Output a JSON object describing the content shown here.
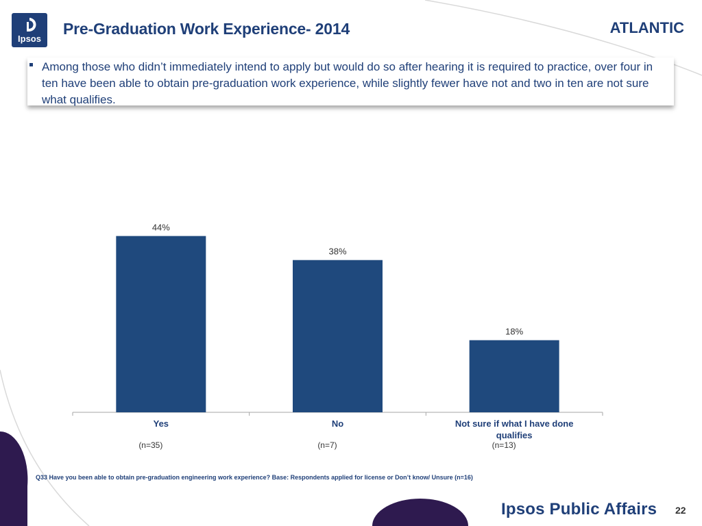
{
  "header": {
    "logo_text": "Ipsos",
    "title": "Pre-Graduation Work Experience- 2014",
    "region": "ATLANTIC"
  },
  "callout": {
    "text": "Among those who didn’t immediately intend to apply but would do so after hearing it is required to practice, over four in ten have been able to obtain pre-graduation work experience, while slightly fewer have not and two in ten are not sure what qualifies."
  },
  "chart_data": {
    "type": "bar",
    "categories": [
      "Yes",
      "No",
      "Not sure if what I have done qualifies"
    ],
    "values": [
      44,
      38,
      18
    ],
    "value_labels": [
      "44%",
      "38%",
      "18%"
    ],
    "sample_sizes": [
      "(n=35)",
      "(n=7)",
      "(n=13)"
    ],
    "title": "",
    "xlabel": "",
    "ylabel": "",
    "ylim": [
      0,
      50
    ],
    "grid": false,
    "legend": "none",
    "bar_color": "#1f497d"
  },
  "footnote": "Q33 Have you been able to obtain pre-graduation engineering work experience? Base: Respondents applied for license or Don’t know/ Unsure (n=16)",
  "footer": {
    "brand": "Ipsos Public Affairs",
    "page_number": "22"
  },
  "colors": {
    "brand": "#1f3f78",
    "accent": "#2e1a4f"
  }
}
